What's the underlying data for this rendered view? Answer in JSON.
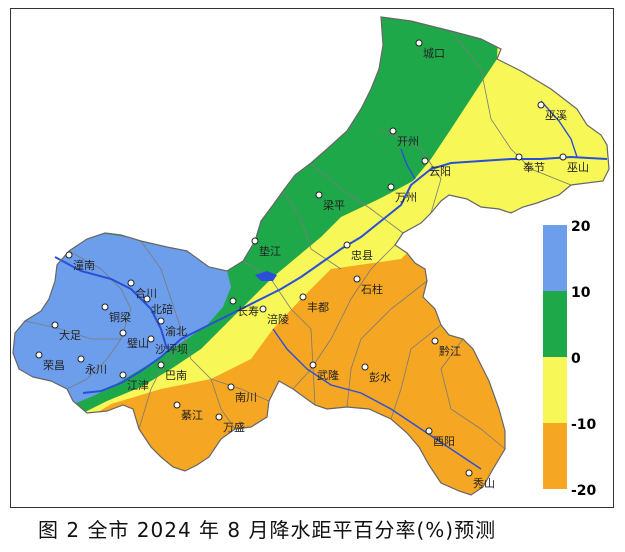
{
  "caption": "图 2  全市 2024 年 8 月降水距平百分率(%)预测",
  "colors": {
    "blue": "#6d9eeb",
    "green": "#1fa84a",
    "yellow": "#f7f757",
    "orange": "#f5a623",
    "river": "#2a4fd8",
    "border": "#777777"
  },
  "legend": {
    "bins": [
      {
        "range": [
          10,
          20
        ],
        "color": "#6d9eeb"
      },
      {
        "range": [
          0,
          10
        ],
        "color": "#1fa84a"
      },
      {
        "range": [
          -10,
          0
        ],
        "color": "#f7f757"
      },
      {
        "range": [
          -20,
          -10
        ],
        "color": "#f5a623"
      }
    ],
    "labels": [
      "20",
      "10",
      "0",
      "-10",
      "-20"
    ]
  },
  "cities": [
    {
      "name": "城口"
    },
    {
      "name": "巫溪"
    },
    {
      "name": "开州"
    },
    {
      "name": "奉节"
    },
    {
      "name": "巫山"
    },
    {
      "name": "云阳"
    },
    {
      "name": "万州"
    },
    {
      "name": "梁平"
    },
    {
      "name": "垫江"
    },
    {
      "name": "忠县"
    },
    {
      "name": "石柱"
    },
    {
      "name": "丰都"
    },
    {
      "name": "长寿"
    },
    {
      "name": "涪陵"
    },
    {
      "name": "潼南"
    },
    {
      "name": "合川"
    },
    {
      "name": "铜梁"
    },
    {
      "name": "北碚"
    },
    {
      "name": "渝北"
    },
    {
      "name": "大足"
    },
    {
      "name": "璧山"
    },
    {
      "name": "沙坪坝"
    },
    {
      "name": "荣昌"
    },
    {
      "name": "永川"
    },
    {
      "name": "江津"
    },
    {
      "name": "巴南"
    },
    {
      "name": "南川"
    },
    {
      "name": "綦江"
    },
    {
      "name": "万盛"
    },
    {
      "name": "武隆"
    },
    {
      "name": "彭水"
    },
    {
      "name": "黔江"
    },
    {
      "name": "酉阳"
    },
    {
      "name": "秀山"
    }
  ]
}
